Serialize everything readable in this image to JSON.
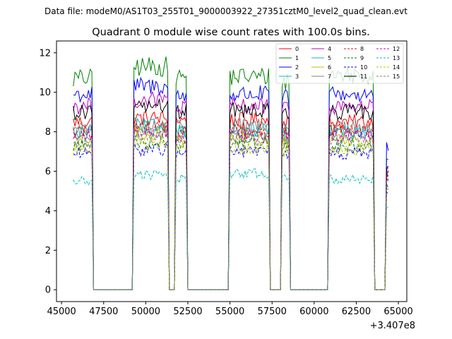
{
  "chart_data": {
    "type": "line",
    "suptitle": "Data file: modeM0/AS1T03_255T01_9000003922_27351cztM0_level2_quad_clean.evt",
    "title": "Quadrant 0 module wise count rates with 100.0s bins.",
    "xlabel": "",
    "ylabel": "",
    "x_offset_label": "+3.407e8",
    "xlim": [
      44700,
      65500
    ],
    "ylim": [
      -0.6,
      12.6
    ],
    "xticks": [
      45000,
      47500,
      50000,
      52500,
      55000,
      57500,
      60000,
      62500,
      65000
    ],
    "yticks": [
      0,
      2,
      4,
      6,
      8,
      10,
      12
    ],
    "bin_width": 100,
    "legend_position": "top-right",
    "notes": "Values approximated from the figure; series are piecewise segments [x_start, x_end, mean_rate] with zero-count gaps between observation windows.",
    "series": [
      {
        "name": "0",
        "color": "#ff0000",
        "dash": "solid",
        "segments": [
          [
            45700,
            46800,
            8.5
          ],
          [
            49300,
            51300,
            8.7
          ],
          [
            51800,
            52400,
            8.6
          ],
          [
            55000,
            57300,
            8.6
          ],
          [
            58100,
            58500,
            8.5
          ],
          [
            60900,
            63500,
            8.5
          ],
          [
            64300,
            64400,
            6.0
          ]
        ]
      },
      {
        "name": "1",
        "color": "#008000",
        "dash": "solid",
        "segments": [
          [
            45700,
            46800,
            10.7
          ],
          [
            49300,
            51300,
            11.3
          ],
          [
            51800,
            52400,
            10.8
          ],
          [
            55000,
            57300,
            10.8
          ],
          [
            58100,
            58500,
            10.6
          ],
          [
            60900,
            63500,
            10.9
          ],
          [
            64300,
            64400,
            6.8
          ]
        ]
      },
      {
        "name": "2",
        "color": "#0000ff",
        "dash": "solid",
        "segments": [
          [
            45700,
            46800,
            9.9
          ],
          [
            49300,
            51300,
            10.3
          ],
          [
            51800,
            52400,
            9.8
          ],
          [
            55000,
            57300,
            9.9
          ],
          [
            58100,
            58500,
            9.7
          ],
          [
            60900,
            63500,
            9.9
          ],
          [
            64300,
            64400,
            7.2
          ]
        ]
      },
      {
        "name": "3",
        "color": "#00bfbf",
        "dash": "solid",
        "segments": [
          [
            45700,
            46800,
            8.0
          ],
          [
            49300,
            51300,
            8.3
          ],
          [
            51800,
            52400,
            8.1
          ],
          [
            55000,
            57300,
            8.1
          ],
          [
            58100,
            58500,
            7.9
          ],
          [
            60900,
            63500,
            8.0
          ],
          [
            64300,
            64400,
            5.8
          ]
        ]
      },
      {
        "name": "4",
        "color": "#bf00bf",
        "dash": "solid",
        "segments": [
          [
            45700,
            46800,
            9.3
          ],
          [
            49300,
            51300,
            9.6
          ],
          [
            51800,
            52400,
            9.2
          ],
          [
            55000,
            57300,
            9.3
          ],
          [
            58100,
            58500,
            9.1
          ],
          [
            60900,
            63500,
            9.3
          ],
          [
            64300,
            64400,
            6.2
          ]
        ]
      },
      {
        "name": "5",
        "color": "#20b2aa",
        "dash": "solid",
        "segments": [
          [
            45700,
            46800,
            7.9
          ],
          [
            49300,
            51300,
            8.1
          ],
          [
            51800,
            52400,
            7.9
          ],
          [
            55000,
            57300,
            7.9
          ],
          [
            58100,
            58500,
            7.8
          ],
          [
            60900,
            63500,
            7.9
          ],
          [
            64300,
            64400,
            5.7
          ]
        ]
      },
      {
        "name": "6",
        "color": "#bfbf00",
        "dash": "solid",
        "segments": [
          [
            45700,
            46800,
            7.6
          ],
          [
            49300,
            51300,
            7.9
          ],
          [
            51800,
            52400,
            7.6
          ],
          [
            55000,
            57300,
            7.7
          ],
          [
            58100,
            58500,
            7.5
          ],
          [
            60900,
            63500,
            7.6
          ],
          [
            64300,
            64400,
            5.5
          ]
        ]
      },
      {
        "name": "7",
        "color": "#808080",
        "dash": "solid",
        "segments": [
          [
            45700,
            46800,
            8.2
          ],
          [
            49300,
            51300,
            8.4
          ],
          [
            51800,
            52400,
            8.2
          ],
          [
            55000,
            57300,
            8.3
          ],
          [
            58100,
            58500,
            8.1
          ],
          [
            60900,
            63500,
            8.2
          ],
          [
            64300,
            64400,
            5.9
          ]
        ]
      },
      {
        "name": "8",
        "color": "#ff0000",
        "dash": "dashed",
        "segments": [
          [
            45700,
            46800,
            8.0
          ],
          [
            49300,
            51300,
            8.2
          ],
          [
            51800,
            52400,
            8.0
          ],
          [
            55000,
            57300,
            8.1
          ],
          [
            58100,
            58500,
            7.9
          ],
          [
            60900,
            63500,
            8.0
          ],
          [
            64300,
            64400,
            5.8
          ]
        ]
      },
      {
        "name": "9",
        "color": "#008000",
        "dash": "dashed",
        "segments": [
          [
            45700,
            46800,
            7.3
          ],
          [
            49300,
            51300,
            7.5
          ],
          [
            51800,
            52400,
            7.3
          ],
          [
            55000,
            57300,
            7.4
          ],
          [
            58100,
            58500,
            7.2
          ],
          [
            60900,
            63500,
            7.3
          ],
          [
            64300,
            64400,
            5.3
          ]
        ]
      },
      {
        "name": "10",
        "color": "#0000ff",
        "dash": "dashed",
        "segments": [
          [
            45700,
            46800,
            6.9
          ],
          [
            49300,
            51300,
            7.1
          ],
          [
            51800,
            52400,
            6.9
          ],
          [
            55000,
            57300,
            7.0
          ],
          [
            58100,
            58500,
            6.8
          ],
          [
            60900,
            63500,
            6.9
          ],
          [
            64300,
            64400,
            5.0
          ]
        ]
      },
      {
        "name": "11",
        "color": "#000000",
        "dash": "solid",
        "segments": [
          [
            45700,
            46800,
            9.0
          ],
          [
            49300,
            51300,
            9.3
          ],
          [
            51800,
            52400,
            9.0
          ],
          [
            55000,
            57300,
            9.1
          ],
          [
            58100,
            58500,
            8.9
          ],
          [
            60900,
            63500,
            9.0
          ],
          [
            64300,
            64400,
            6.4
          ]
        ]
      },
      {
        "name": "12",
        "color": "#bf00bf",
        "dash": "dashed",
        "segments": [
          [
            45700,
            46800,
            7.8
          ],
          [
            49300,
            51300,
            8.0
          ],
          [
            51800,
            52400,
            7.8
          ],
          [
            55000,
            57300,
            7.8
          ],
          [
            58100,
            58500,
            7.7
          ],
          [
            60900,
            63500,
            7.8
          ],
          [
            64300,
            64400,
            5.6
          ]
        ]
      },
      {
        "name": "13",
        "color": "#00bfbf",
        "dash": "dashed",
        "segments": [
          [
            45700,
            46800,
            5.5
          ],
          [
            49300,
            51300,
            5.8
          ],
          [
            51800,
            52400,
            5.6
          ],
          [
            55000,
            57300,
            5.9
          ],
          [
            58100,
            58500,
            5.6
          ],
          [
            60900,
            63500,
            5.6
          ],
          [
            64300,
            64400,
            4.2
          ]
        ]
      },
      {
        "name": "14",
        "color": "#bfbf00",
        "dash": "dashed",
        "segments": [
          [
            45700,
            46800,
            7.1
          ],
          [
            49300,
            51300,
            7.4
          ],
          [
            51800,
            52400,
            7.1
          ],
          [
            55000,
            57300,
            7.2
          ],
          [
            58100,
            58500,
            7.0
          ],
          [
            60900,
            63500,
            7.1
          ],
          [
            64300,
            64400,
            5.2
          ]
        ]
      },
      {
        "name": "15",
        "color": "#808080",
        "dash": "dashed",
        "segments": [
          [
            45700,
            46800,
            7.5
          ],
          [
            49300,
            51300,
            7.8
          ],
          [
            51800,
            52400,
            7.5
          ],
          [
            55000,
            57300,
            7.6
          ],
          [
            58100,
            58500,
            7.4
          ],
          [
            60900,
            63500,
            7.5
          ],
          [
            64300,
            64400,
            5.4
          ]
        ]
      }
    ]
  }
}
